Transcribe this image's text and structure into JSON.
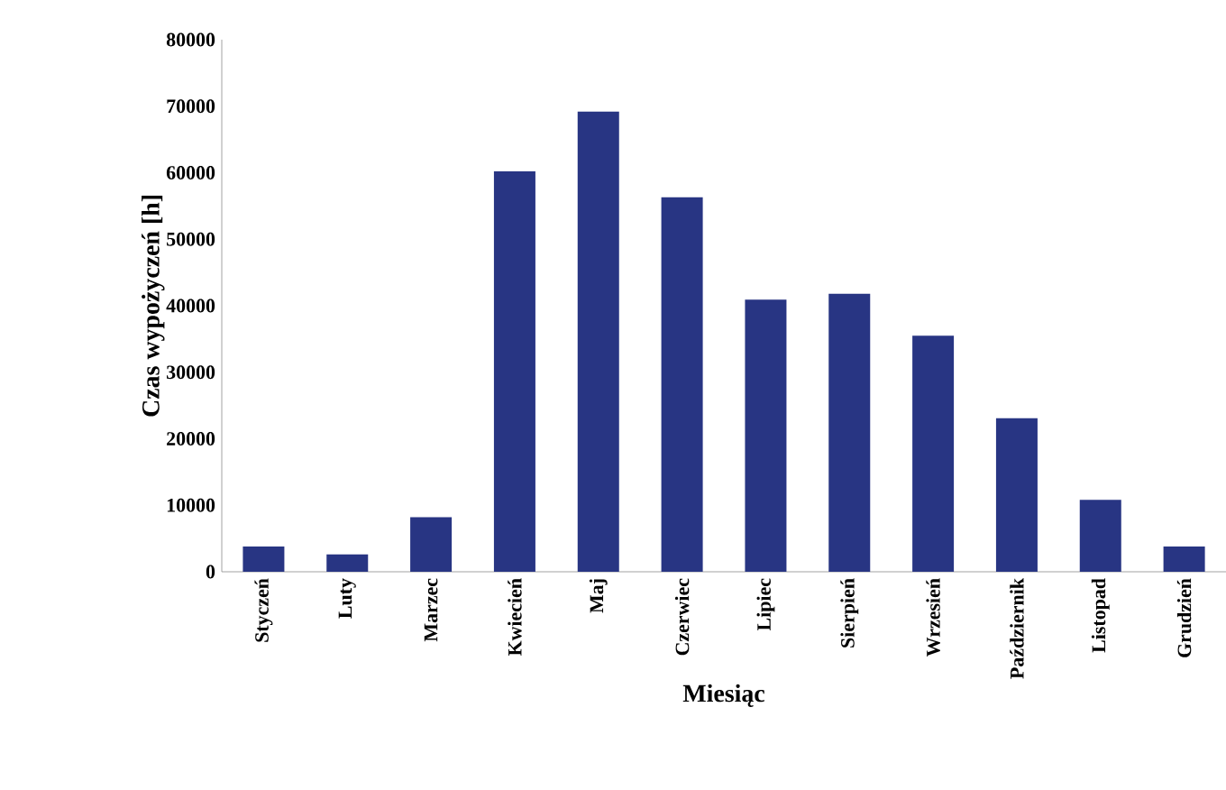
{
  "chart_data": {
    "type": "bar",
    "xlabel": "Miesiąc",
    "ylabel": "Czas wypożyczeń [h]",
    "categories": [
      "Styczeń",
      "Luty",
      "Marzec",
      "Kwiecień",
      "Maj",
      "Czerwiec",
      "Lipiec",
      "Sierpień",
      "Wrzesień",
      "Październik",
      "Listopad",
      "Grudzień"
    ],
    "values": [
      3800,
      2600,
      8200,
      60200,
      69200,
      56300,
      40900,
      41800,
      35500,
      23100,
      10800,
      3800
    ],
    "color": "#283583",
    "ylim": [
      0,
      80000
    ],
    "yticks": [
      0,
      10000,
      20000,
      30000,
      40000,
      50000,
      60000,
      70000,
      80000
    ]
  }
}
